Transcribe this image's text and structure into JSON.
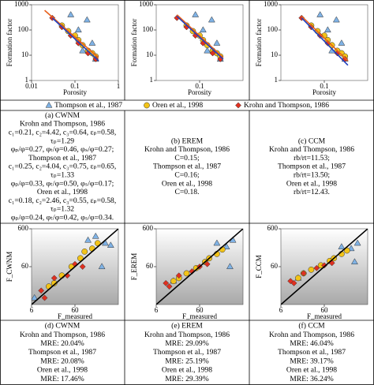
{
  "chart_data": [
    {
      "type": "scatter",
      "log": true,
      "xlabel": "Porosity",
      "ylabel": "Formation factor",
      "xlim": [
        0.01,
        1
      ],
      "ylim": [
        1,
        1000
      ],
      "xticks": [
        0.01,
        0.1,
        1
      ],
      "yticks": [
        1,
        10,
        100,
        1000
      ],
      "background": "plain",
      "series": [
        {
          "color": "#7fb2e5",
          "marker": "triangle",
          "x": [
            0.08,
            0.19,
            0.12,
            0.25,
            0.3,
            0.15
          ],
          "y": [
            400,
            250,
            100,
            30,
            7,
            15
          ]
        },
        {
          "color": "#f2c318",
          "marker": "circle",
          "x": [
            0.05,
            0.07,
            0.1,
            0.12,
            0.15,
            0.2,
            0.25,
            0.3
          ],
          "y": [
            150,
            90,
            60,
            40,
            25,
            15,
            12,
            9
          ]
        },
        {
          "color": "#e03020",
          "marker": "diamond",
          "x": [
            0.03,
            0.05,
            0.08,
            0.12,
            0.2,
            0.3
          ],
          "y": [
            300,
            130,
            60,
            30,
            12,
            7
          ]
        }
      ],
      "lines": [
        {
          "color": "#e8601c",
          "x": [
            0.02,
            0.35
          ],
          "y": [
            600,
            8
          ]
        },
        {
          "color": "#1f3fbf",
          "x": [
            0.03,
            0.35
          ],
          "y": [
            300,
            6
          ]
        }
      ]
    },
    {
      "type": "scatter",
      "log": true,
      "xlabel": "Porosity",
      "ylabel": "Formation factor",
      "xlim": [
        0.01,
        1
      ],
      "ylim": [
        1,
        1000
      ],
      "xticks": [
        0.1
      ],
      "yticks": [
        1,
        10,
        100,
        1000
      ],
      "background": "plain",
      "series": [
        {
          "color": "#7fb2e5",
          "marker": "triangle",
          "x": [
            0.08,
            0.19,
            0.12,
            0.25,
            0.3,
            0.15
          ],
          "y": [
            400,
            250,
            100,
            30,
            7,
            15
          ]
        },
        {
          "color": "#f2c318",
          "marker": "circle",
          "x": [
            0.05,
            0.07,
            0.1,
            0.12,
            0.15,
            0.2,
            0.25,
            0.3
          ],
          "y": [
            150,
            90,
            60,
            40,
            25,
            15,
            12,
            9
          ]
        },
        {
          "color": "#e03020",
          "marker": "diamond",
          "x": [
            0.03,
            0.05,
            0.08,
            0.12,
            0.2,
            0.3
          ],
          "y": [
            300,
            130,
            60,
            30,
            12,
            7
          ]
        }
      ],
      "lines": [
        {
          "color": "#e8601c",
          "x": [
            0.03,
            0.35
          ],
          "y": [
            400,
            8
          ]
        },
        {
          "color": "#1f3fbf",
          "x": [
            0.03,
            0.35
          ],
          "y": [
            350,
            7
          ]
        }
      ]
    },
    {
      "type": "scatter",
      "log": true,
      "xlabel": "Porosity",
      "ylabel": "Formation factor",
      "xlim": [
        0.01,
        1
      ],
      "ylim": [
        1,
        1000
      ],
      "xticks": [
        0.1
      ],
      "yticks": [
        1,
        10,
        100,
        1000
      ],
      "background": "plain",
      "series": [
        {
          "color": "#7fb2e5",
          "marker": "triangle",
          "x": [
            0.08,
            0.19,
            0.12,
            0.25,
            0.3,
            0.15
          ],
          "y": [
            400,
            250,
            100,
            30,
            7,
            15
          ]
        },
        {
          "color": "#f2c318",
          "marker": "circle",
          "x": [
            0.05,
            0.07,
            0.1,
            0.12,
            0.15,
            0.2,
            0.25,
            0.3
          ],
          "y": [
            150,
            90,
            60,
            40,
            25,
            15,
            12,
            9
          ]
        },
        {
          "color": "#e03020",
          "marker": "diamond",
          "x": [
            0.03,
            0.05,
            0.08,
            0.12,
            0.2,
            0.3
          ],
          "y": [
            300,
            130,
            60,
            30,
            12,
            7
          ]
        }
      ],
      "lines": [
        {
          "color": "#e8601c",
          "x": [
            0.03,
            0.35
          ],
          "y": [
            350,
            6
          ]
        },
        {
          "color": "#1f3fbf",
          "x": [
            0.03,
            0.35
          ],
          "y": [
            300,
            4
          ]
        }
      ]
    },
    {
      "type": "scatter",
      "log": true,
      "xlabel": "F_measured",
      "ylabel": "F_CWNM",
      "xlim": [
        6,
        600
      ],
      "ylim": [
        6,
        600
      ],
      "xticks": [
        6,
        60
      ],
      "yticks": [
        60,
        600
      ],
      "background": "gradient",
      "series": [
        {
          "color": "#7fb2e5",
          "marker": "triangle",
          "x": [
            7,
            120,
            180,
            300,
            250,
            400
          ],
          "y": [
            9,
            300,
            380,
            250,
            60,
            220
          ]
        },
        {
          "color": "#f2c318",
          "marker": "circle",
          "x": [
            15,
            20,
            30,
            50,
            80,
            100,
            150,
            200
          ],
          "y": [
            18,
            22,
            35,
            60,
            100,
            150,
            180,
            250
          ]
        },
        {
          "color": "#e03020",
          "marker": "diamond",
          "x": [
            10,
            12,
            20,
            40,
            60,
            90
          ],
          "y": [
            14,
            9,
            30,
            35,
            70,
            60
          ]
        }
      ],
      "lines": [
        {
          "color": "#000000",
          "x": [
            6,
            600
          ],
          "y": [
            6,
            600
          ]
        }
      ]
    },
    {
      "type": "scatter",
      "log": true,
      "xlabel": "F_measured",
      "ylabel": "F_EREM",
      "xlim": [
        6,
        600
      ],
      "ylim": [
        6,
        600
      ],
      "xticks": [
        6,
        60
      ],
      "yticks": [
        60,
        600
      ],
      "background": "gradient",
      "series": [
        {
          "color": "#7fb2e5",
          "marker": "triangle",
          "x": [
            15,
            150,
            250,
            350,
            300
          ],
          "y": [
            25,
            250,
            200,
            300,
            60
          ]
        },
        {
          "color": "#f2c318",
          "marker": "circle",
          "x": [
            15,
            20,
            30,
            50,
            80,
            100,
            150,
            200
          ],
          "y": [
            25,
            30,
            40,
            55,
            80,
            100,
            130,
            170
          ]
        },
        {
          "color": "#e03020",
          "marker": "diamond",
          "x": [
            10,
            12,
            20,
            40,
            60,
            90
          ],
          "y": [
            22,
            18,
            35,
            45,
            60,
            70
          ]
        }
      ],
      "lines": [
        {
          "color": "#000000",
          "x": [
            6,
            600
          ],
          "y": [
            6,
            600
          ]
        }
      ]
    },
    {
      "type": "scatter",
      "log": true,
      "xlabel": "F_measured",
      "ylabel": "F_CCM",
      "xlim": [
        6,
        600
      ],
      "ylim": [
        6,
        600
      ],
      "xticks": [
        6,
        60
      ],
      "yticks": [
        60,
        600
      ],
      "background": "gradient",
      "series": [
        {
          "color": "#7fb2e5",
          "marker": "triangle",
          "x": [
            15,
            150,
            250,
            350,
            300
          ],
          "y": [
            30,
            200,
            180,
            250,
            80
          ]
        },
        {
          "color": "#f2c318",
          "marker": "circle",
          "x": [
            15,
            20,
            30,
            50,
            80,
            100,
            150,
            200
          ],
          "y": [
            30,
            40,
            50,
            65,
            85,
            100,
            130,
            160
          ]
        },
        {
          "color": "#e03020",
          "marker": "diamond",
          "x": [
            10,
            12,
            20,
            40,
            60,
            90
          ],
          "y": [
            25,
            22,
            40,
            55,
            65,
            75
          ]
        }
      ],
      "lines": [
        {
          "color": "#000000",
          "x": [
            6,
            600
          ],
          "y": [
            6,
            600
          ]
        }
      ]
    }
  ],
  "legend": [
    {
      "name": "Thompson et al., 1987",
      "color": "#7fb2e5",
      "marker": "triangle"
    },
    {
      "name": "Oren et al., 1998",
      "color": "#f2c318",
      "marker": "circle"
    },
    {
      "name": "Krohn and Thompson, 1986",
      "color": "#e03020",
      "marker": "diamond"
    }
  ],
  "captions_mid": [
    {
      "lines": [
        "(a) CWNM",
        "Krohn and Thompson, 1986",
        "c₁=0.21, c₂=4.42, c₃=0.64, εₚ=0.58,",
        "τₚ=1.29",
        "φₚ/φ=0.27, φₜ/φ=0.46, φₛ/φ=0.27;",
        "Thompson et al., 1987",
        "c₁=0.25, c₂=4.04, c₃=0.75, εₚ=0.65,",
        "τₚ=1.33",
        "φₚ/φ=0.33, φₜ/φ=0.50, φₛ/φ=0.17;",
        "Oren et al., 1998",
        "c₁=0.18, c₂=2.46, c₃=0.55, εₚ=0.58,",
        "τₚ=1.32",
        "φₚ/φ=0.24, φₜ/φ=0.42, φₛ/φ=0.34."
      ]
    },
    {
      "lines": [
        "(b) EREM",
        "Krohn and Thompson, 1986",
        "C=0.15;",
        "Thompson et al., 1987",
        "C=0.16;",
        "Oren et al., 1998",
        "C=0.18."
      ]
    },
    {
      "lines": [
        "(c) CCM",
        "Krohn and Thompson, 1986",
        "rb/rt=11.53;",
        "Thompson et al., 1987",
        "rb/rt=13.50;",
        "Oren et al., 1998",
        "rb/rt=12.43."
      ]
    }
  ],
  "captions_bottom": [
    {
      "lines": [
        "(d) CWNM",
        "Krohn and Thompson, 1986",
        "MRE: 20.04%",
        "Thompson et al., 1987",
        "MRE: 20.08%",
        "Oren et al., 1998",
        "MRE: 17.46%"
      ]
    },
    {
      "lines": [
        "(e) EREM",
        "Krohn and Thompson, 1986",
        "MRE: 29.09%",
        "Thompson et al., 1987",
        "MRE: 25.19%",
        "Oren et al., 1998",
        "MRE: 29.39%"
      ]
    },
    {
      "lines": [
        "(f) CCM",
        "Krohn and Thompson, 1986",
        "MRE: 46.04%",
        "Thompson et al., 1987",
        "MRE: 39.17%",
        "Oren et al., 1998",
        "MRE: 36.24%"
      ]
    }
  ]
}
